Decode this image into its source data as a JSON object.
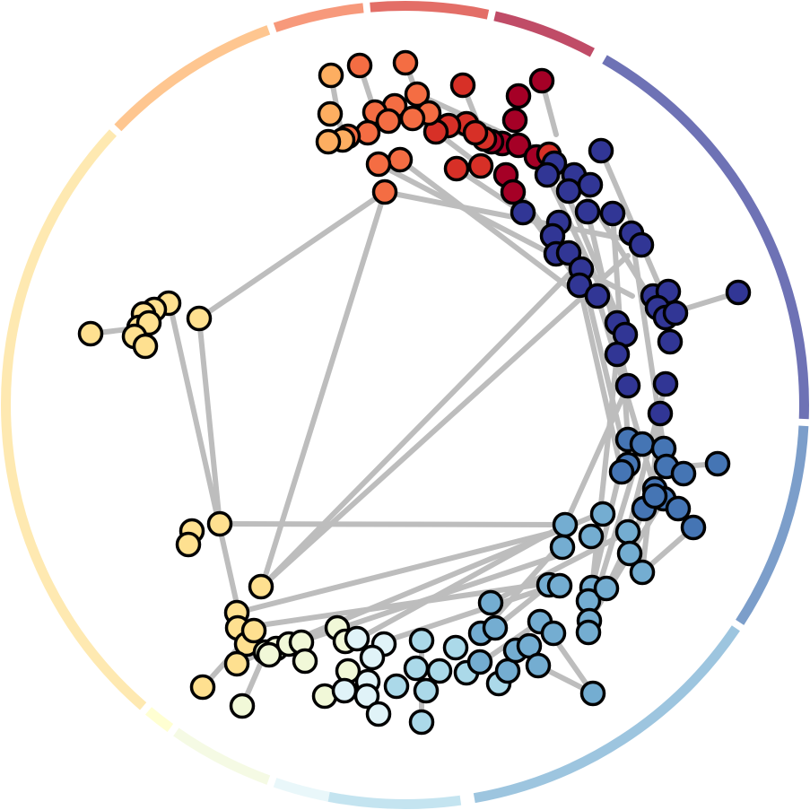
{
  "colors": {
    "edge": "#bdbdbd",
    "node_outline": "#000000",
    "background": "#ffffff"
  },
  "clusters": [
    {
      "id": "c01",
      "color": "#a50026"
    },
    {
      "id": "c02",
      "color": "#d73027"
    },
    {
      "id": "c03",
      "color": "#f46d43"
    },
    {
      "id": "c04",
      "color": "#fdae61"
    },
    {
      "id": "c05",
      "color": "#fee090"
    },
    {
      "id": "c06",
      "color": "#ffffbf"
    },
    {
      "id": "c07",
      "color": "#f1f8d8"
    },
    {
      "id": "c08",
      "color": "#e0f3f8"
    },
    {
      "id": "c09",
      "color": "#abd9e9"
    },
    {
      "id": "c10",
      "color": "#74add1"
    },
    {
      "id": "c11",
      "color": "#4575b4"
    },
    {
      "id": "c12",
      "color": "#313695"
    }
  ],
  "node_count": 179
}
